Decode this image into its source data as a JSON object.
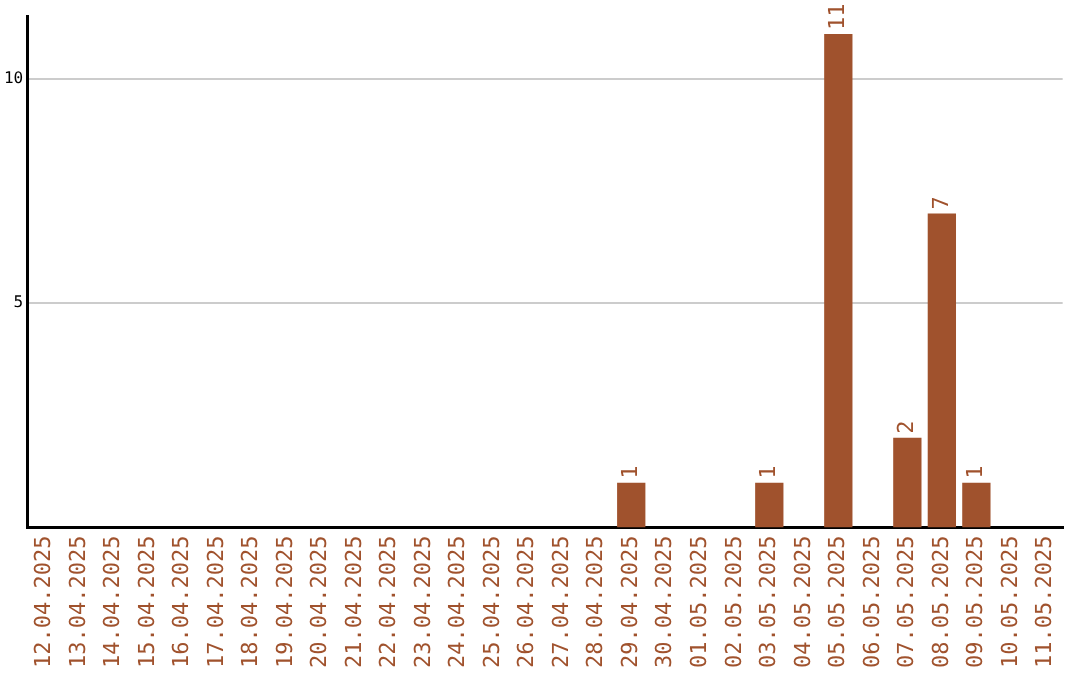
{
  "chart_data": {
    "type": "bar",
    "categories": [
      "12.04.2025",
      "13.04.2025",
      "14.04.2025",
      "15.04.2025",
      "16.04.2025",
      "17.04.2025",
      "18.04.2025",
      "19.04.2025",
      "20.04.2025",
      "21.04.2025",
      "22.04.2025",
      "23.04.2025",
      "24.04.2025",
      "25.04.2025",
      "26.04.2025",
      "27.04.2025",
      "28.04.2025",
      "29.04.2025",
      "30.04.2025",
      "01.05.2025",
      "02.05.2025",
      "03.05.2025",
      "04.05.2025",
      "05.05.2025",
      "06.05.2025",
      "07.05.2025",
      "08.05.2025",
      "09.05.2025",
      "10.05.2025",
      "11.05.2025"
    ],
    "values": [
      0,
      0,
      0,
      0,
      0,
      0,
      0,
      0,
      0,
      0,
      0,
      0,
      0,
      0,
      0,
      0,
      0,
      1,
      0,
      0,
      0,
      1,
      0,
      11,
      0,
      2,
      7,
      1,
      0,
      0
    ],
    "value_labels": [
      null,
      null,
      null,
      null,
      null,
      null,
      null,
      null,
      null,
      null,
      null,
      null,
      null,
      null,
      null,
      null,
      null,
      "1",
      null,
      null,
      null,
      "1",
      null,
      "11",
      null,
      "2",
      "7",
      "1",
      null,
      null
    ],
    "color": "#a0522d",
    "ylim": [
      0,
      11.4
    ],
    "yticks": [
      5,
      10
    ],
    "grid": "y"
  }
}
